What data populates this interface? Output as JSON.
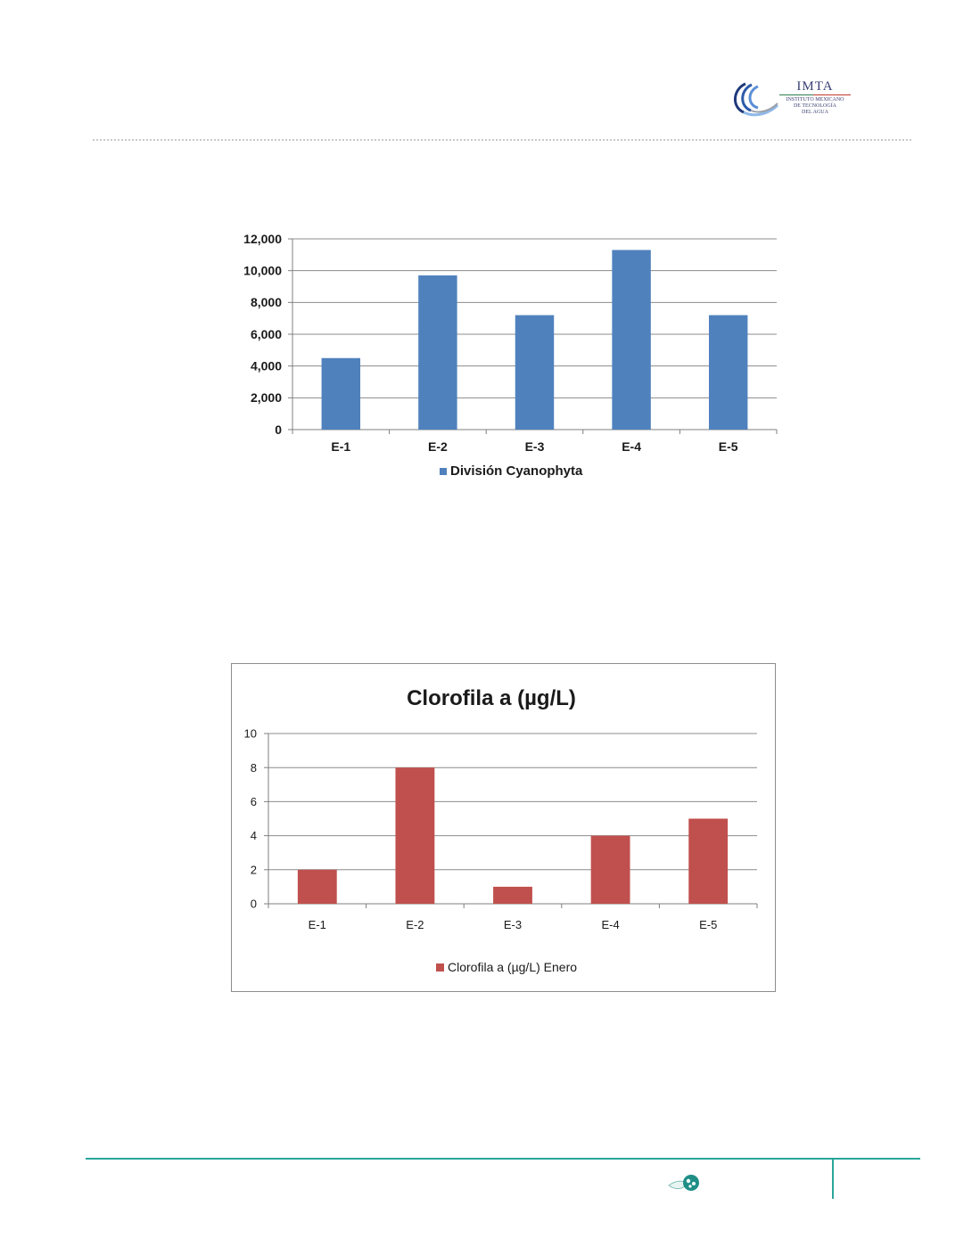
{
  "logo": {
    "name": "IMTA",
    "line1": "INSTITUTO MEXICANO",
    "line2": "DE TECNOLOGÍA",
    "line3": "DEL AGUA"
  },
  "chart_data": [
    {
      "type": "bar",
      "title": "",
      "categories": [
        "E-1",
        "E-2",
        "E-3",
        "E-4",
        "E-5"
      ],
      "series": [
        {
          "name": "División Cyanophyta",
          "values": [
            4500,
            9700,
            7200,
            11300,
            7200
          ],
          "color": "#4f81bd"
        }
      ],
      "ylim": [
        0,
        12000
      ],
      "yticks": [
        0,
        2000,
        4000,
        6000,
        8000,
        10000,
        12000
      ],
      "ytick_labels": [
        "0",
        "2,000",
        "4,000",
        "6,000",
        "8,000",
        "10,000",
        "12,000"
      ],
      "grid": true,
      "legend": "bottom"
    },
    {
      "type": "bar",
      "title": "Clorofila a (µg/L)",
      "categories": [
        "E-1",
        "E-2",
        "E-3",
        "E-4",
        "E-5"
      ],
      "series": [
        {
          "name": "Clorofila a (µg/L) Enero",
          "values": [
            2,
            8,
            1,
            4,
            5
          ],
          "color": "#c0504d"
        }
      ],
      "ylim": [
        0,
        10
      ],
      "yticks": [
        0,
        2,
        4,
        6,
        8,
        10
      ],
      "ytick_labels": [
        "0",
        "2",
        "4",
        "6",
        "8",
        "10"
      ],
      "grid": true,
      "legend": "bottom"
    }
  ]
}
